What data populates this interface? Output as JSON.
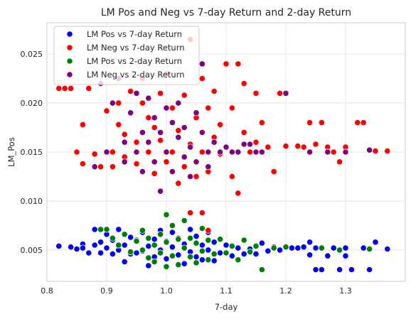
{
  "chart_data": {
    "type": "scatter",
    "title": "LM Pos and Neg vs 7-day Return and 2-day Return",
    "xlabel": "7-day",
    "ylabel": "LM_Pos",
    "xlim": [
      0.8,
      1.4
    ],
    "ylim": [
      0.0018,
      0.0282
    ],
    "xticks": [
      0.8,
      0.9,
      1.0,
      1.1,
      1.2,
      1.3
    ],
    "xtick_labels": [
      "0.8",
      "0.9",
      "1.0",
      "1.1",
      "1.2",
      "1.3"
    ],
    "yticks": [
      0.005,
      0.01,
      0.015,
      0.02,
      0.025
    ],
    "ytick_labels": [
      "0.005",
      "0.010",
      "0.015",
      "0.020",
      "0.025"
    ],
    "grid": true,
    "legend_position": "top-left",
    "series": [
      {
        "name": "LM Pos vs 7-day Return",
        "color": "#0000ff",
        "points": [
          [
            0.82,
            0.0054
          ],
          [
            0.84,
            0.0053
          ],
          [
            0.85,
            0.0051
          ],
          [
            0.86,
            0.0056
          ],
          [
            0.86,
            0.0052
          ],
          [
            0.87,
            0.0047
          ],
          [
            0.88,
            0.0071
          ],
          [
            0.88,
            0.0055
          ],
          [
            0.89,
            0.0058
          ],
          [
            0.89,
            0.0047
          ],
          [
            0.9,
            0.0052
          ],
          [
            0.9,
            0.0066
          ],
          [
            0.91,
            0.0046
          ],
          [
            0.91,
            0.006
          ],
          [
            0.92,
            0.005
          ],
          [
            0.92,
            0.0071
          ],
          [
            0.93,
            0.0055
          ],
          [
            0.93,
            0.0038
          ],
          [
            0.94,
            0.0063
          ],
          [
            0.94,
            0.0046
          ],
          [
            0.95,
            0.006
          ],
          [
            0.95,
            0.0047
          ],
          [
            0.96,
            0.0049
          ],
          [
            0.96,
            0.0068
          ],
          [
            0.97,
            0.0034
          ],
          [
            0.97,
            0.0054
          ],
          [
            0.98,
            0.0043
          ],
          [
            0.98,
            0.0061
          ],
          [
            0.99,
            0.005
          ],
          [
            0.99,
            0.007
          ],
          [
            1.0,
            0.0041
          ],
          [
            1.0,
            0.0059
          ],
          [
            1.01,
            0.0053
          ],
          [
            1.01,
            0.0068
          ],
          [
            1.02,
            0.0045
          ],
          [
            1.02,
            0.0062
          ],
          [
            1.03,
            0.0036
          ],
          [
            1.03,
            0.0056
          ],
          [
            1.04,
            0.0048
          ],
          [
            1.04,
            0.0071
          ],
          [
            1.05,
            0.0043
          ],
          [
            1.05,
            0.0064
          ],
          [
            1.06,
            0.004
          ],
          [
            1.06,
            0.0055
          ],
          [
            1.07,
            0.005
          ],
          [
            1.07,
            0.0068
          ],
          [
            1.08,
            0.0039
          ],
          [
            1.08,
            0.0058
          ],
          [
            1.09,
            0.0047
          ],
          [
            1.1,
            0.0055
          ],
          [
            1.11,
            0.0044
          ],
          [
            1.12,
            0.0052
          ],
          [
            1.13,
            0.0046
          ],
          [
            1.14,
            0.0051
          ],
          [
            1.15,
            0.0046
          ],
          [
            1.16,
            0.0057
          ],
          [
            1.17,
            0.0049
          ],
          [
            1.18,
            0.0053
          ],
          [
            1.19,
            0.005
          ],
          [
            1.21,
            0.0052
          ],
          [
            1.22,
            0.0052
          ],
          [
            1.23,
            0.0053
          ],
          [
            1.24,
            0.0045
          ],
          [
            1.24,
            0.0058
          ],
          [
            1.25,
            0.0052
          ],
          [
            1.25,
            0.003
          ],
          [
            1.26,
            0.003
          ],
          [
            1.27,
            0.0044
          ],
          [
            1.28,
            0.0052
          ],
          [
            1.29,
            0.003
          ],
          [
            1.3,
            0.0052
          ],
          [
            1.3,
            0.0044
          ],
          [
            1.31,
            0.003
          ],
          [
            1.33,
            0.0052
          ],
          [
            1.34,
            0.003
          ],
          [
            1.35,
            0.0058
          ],
          [
            1.37,
            0.0051
          ]
        ]
      },
      {
        "name": "LM Neg vs 7-day Return",
        "color": "#ff0000",
        "points": [
          [
            0.82,
            0.0215
          ],
          [
            0.83,
            0.0215
          ],
          [
            0.84,
            0.0215
          ],
          [
            0.85,
            0.015
          ],
          [
            0.86,
            0.0138
          ],
          [
            0.86,
            0.0178
          ],
          [
            0.87,
            0.0215
          ],
          [
            0.88,
            0.0148
          ],
          [
            0.89,
            0.0135
          ],
          [
            0.9,
            0.0192
          ],
          [
            0.91,
            0.015
          ],
          [
            0.91,
            0.0135
          ],
          [
            0.92,
            0.0178
          ],
          [
            0.92,
            0.02
          ],
          [
            0.93,
            0.0168
          ],
          [
            0.93,
            0.0145
          ],
          [
            0.94,
            0.0212
          ],
          [
            0.94,
            0.019
          ],
          [
            0.95,
            0.016
          ],
          [
            0.95,
            0.0138
          ],
          [
            0.96,
            0.0225
          ],
          [
            0.96,
            0.02
          ],
          [
            0.97,
            0.0185
          ],
          [
            0.97,
            0.015
          ],
          [
            0.98,
            0.0128
          ],
          [
            0.98,
            0.0175
          ],
          [
            0.99,
            0.021
          ],
          [
            0.99,
            0.0162
          ],
          [
            1.0,
            0.014
          ],
          [
            1.0,
            0.023
          ],
          [
            1.01,
            0.0195
          ],
          [
            1.01,
            0.015
          ],
          [
            1.02,
            0.0118
          ],
          [
            1.02,
            0.0172
          ],
          [
            1.03,
            0.0208
          ],
          [
            1.03,
            0.0135
          ],
          [
            1.04,
            0.0265
          ],
          [
            1.04,
            0.0158
          ],
          [
            1.05,
            0.0185
          ],
          [
            1.05,
            0.0125
          ],
          [
            1.06,
            0.0225
          ],
          [
            1.06,
            0.015
          ],
          [
            1.07,
            0.0195
          ],
          [
            1.07,
            0.013
          ],
          [
            1.08,
            0.0165
          ],
          [
            1.08,
            0.0212
          ],
          [
            1.09,
            0.0148
          ],
          [
            1.09,
            0.0178
          ],
          [
            1.1,
            0.024
          ],
          [
            1.1,
            0.0155
          ],
          [
            1.11,
            0.0125
          ],
          [
            1.11,
            0.0195
          ],
          [
            1.12,
            0.024
          ],
          [
            1.12,
            0.0108
          ],
          [
            1.13,
            0.017
          ],
          [
            1.13,
            0.022
          ],
          [
            1.14,
            0.015
          ],
          [
            1.15,
            0.021
          ],
          [
            1.15,
            0.016
          ],
          [
            1.16,
            0.018
          ],
          [
            1.17,
            0.0155
          ],
          [
            1.18,
            0.013
          ],
          [
            1.19,
            0.021
          ],
          [
            1.2,
            0.0156
          ],
          [
            1.22,
            0.0156
          ],
          [
            1.23,
            0.0155
          ],
          [
            1.24,
            0.018
          ],
          [
            1.25,
            0.0158
          ],
          [
            1.26,
            0.018
          ],
          [
            1.27,
            0.0155
          ],
          [
            1.28,
            0.015
          ],
          [
            1.29,
            0.014
          ],
          [
            1.3,
            0.0155
          ],
          [
            1.32,
            0.018
          ],
          [
            1.33,
            0.018
          ],
          [
            1.35,
            0.0151
          ],
          [
            1.37,
            0.0151
          ],
          [
            1.07,
            0.007
          ],
          [
            1.06,
            0.0088
          ],
          [
            1.04,
            0.0088
          ]
        ]
      },
      {
        "name": "LM Pos vs 2-day Return",
        "color": "#008000",
        "points": [
          [
            0.89,
            0.0071
          ],
          [
            0.9,
            0.0071
          ],
          [
            0.91,
            0.0062
          ],
          [
            0.92,
            0.0055
          ],
          [
            0.93,
            0.0066
          ],
          [
            0.94,
            0.0048
          ],
          [
            0.95,
            0.0059
          ],
          [
            0.96,
            0.007
          ],
          [
            0.96,
            0.005
          ],
          [
            0.97,
            0.0042
          ],
          [
            0.97,
            0.0062
          ],
          [
            0.98,
            0.0055
          ],
          [
            0.98,
            0.0038
          ],
          [
            0.99,
            0.0066
          ],
          [
            0.99,
            0.0047
          ],
          [
            1.0,
            0.0086
          ],
          [
            1.0,
            0.0058
          ],
          [
            1.0,
            0.0033
          ],
          [
            1.01,
            0.0044
          ],
          [
            1.01,
            0.0075
          ],
          [
            1.02,
            0.0061
          ],
          [
            1.02,
            0.0035
          ],
          [
            1.03,
            0.0052
          ],
          [
            1.03,
            0.008
          ],
          [
            1.04,
            0.0043
          ],
          [
            1.04,
            0.0062
          ],
          [
            1.05,
            0.0037
          ],
          [
            1.05,
            0.0057
          ],
          [
            1.06,
            0.0049
          ],
          [
            1.06,
            0.0072
          ],
          [
            1.07,
            0.004
          ],
          [
            1.07,
            0.006
          ],
          [
            1.08,
            0.0046
          ],
          [
            1.09,
            0.0061
          ],
          [
            1.1,
            0.0047
          ],
          [
            1.11,
            0.0054
          ],
          [
            1.12,
            0.004
          ],
          [
            1.13,
            0.006
          ],
          [
            1.14,
            0.0048
          ],
          [
            1.15,
            0.0054
          ],
          [
            1.16,
            0.003
          ],
          [
            1.18,
            0.0052
          ],
          [
            1.2,
            0.0053
          ],
          [
            1.26,
            0.0052
          ],
          [
            1.29,
            0.005
          ],
          [
            1.34,
            0.0051
          ]
        ]
      },
      {
        "name": "LM Neg vs 2-day Return",
        "color": "#800080",
        "points": [
          [
            0.88,
            0.0135
          ],
          [
            0.89,
            0.022
          ],
          [
            0.9,
            0.015
          ],
          [
            0.91,
            0.02
          ],
          [
            0.92,
            0.0225
          ],
          [
            0.93,
            0.016
          ],
          [
            0.93,
            0.014
          ],
          [
            0.94,
            0.019
          ],
          [
            0.95,
            0.021
          ],
          [
            0.95,
            0.015
          ],
          [
            0.96,
            0.017
          ],
          [
            0.96,
            0.013
          ],
          [
            0.97,
            0.0205
          ],
          [
            0.97,
            0.016
          ],
          [
            0.98,
            0.0185
          ],
          [
            0.98,
            0.014
          ],
          [
            0.99,
            0.017
          ],
          [
            0.99,
            0.011
          ],
          [
            1.0,
            0.0195
          ],
          [
            1.0,
            0.015
          ],
          [
            1.01,
            0.018
          ],
          [
            1.01,
            0.013
          ],
          [
            1.02,
            0.0165
          ],
          [
            1.02,
            0.02
          ],
          [
            1.03,
            0.0145
          ],
          [
            1.03,
            0.0175
          ],
          [
            1.04,
            0.0125
          ],
          [
            1.04,
            0.0155
          ],
          [
            1.05,
            0.019
          ],
          [
            1.05,
            0.014
          ],
          [
            1.06,
            0.017
          ],
          [
            1.06,
            0.024
          ],
          [
            1.07,
            0.015
          ],
          [
            1.07,
            0.0135
          ],
          [
            1.08,
            0.016
          ],
          [
            1.09,
            0.015
          ],
          [
            1.1,
            0.0155
          ],
          [
            1.11,
            0.015
          ],
          [
            1.12,
            0.015
          ],
          [
            1.13,
            0.0158
          ],
          [
            1.14,
            0.0158
          ],
          [
            1.15,
            0.015
          ],
          [
            1.16,
            0.015
          ],
          [
            1.2,
            0.021
          ],
          [
            1.24,
            0.015
          ],
          [
            1.27,
            0.015
          ],
          [
            1.3,
            0.015
          ],
          [
            1.34,
            0.0152
          ]
        ]
      }
    ]
  }
}
